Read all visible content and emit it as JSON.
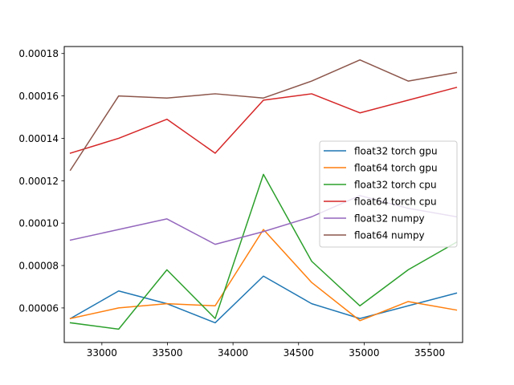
{
  "chart_data": {
    "type": "line",
    "x": [
      32760,
      33128,
      33496,
      33864,
      34232,
      34600,
      34968,
      35336,
      35704
    ],
    "series": [
      {
        "name": "float32 torch gpu",
        "color": "#1f77b4",
        "values": [
          5.5e-05,
          6.8e-05,
          6.2e-05,
          5.3e-05,
          7.5e-05,
          6.2e-05,
          5.5e-05,
          6.1e-05,
          6.7e-05
        ]
      },
      {
        "name": "float64 torch gpu",
        "color": "#ff7f0e",
        "values": [
          5.5e-05,
          6e-05,
          6.2e-05,
          6.1e-05,
          9.7e-05,
          7.2e-05,
          5.4e-05,
          6.3e-05,
          5.9e-05
        ]
      },
      {
        "name": "float32 torch cpu",
        "color": "#2ca02c",
        "values": [
          5.3e-05,
          5e-05,
          7.8e-05,
          5.5e-05,
          0.000123,
          8.2e-05,
          6.1e-05,
          7.8e-05,
          9.1e-05
        ]
      },
      {
        "name": "float64 torch cpu",
        "color": "#d62728",
        "values": [
          0.000133,
          0.00014,
          0.000149,
          0.000133,
          0.000158,
          0.000161,
          0.000152,
          0.000158,
          0.000164
        ]
      },
      {
        "name": "float32 numpy",
        "color": "#9467bd",
        "values": [
          9.2e-05,
          9.7e-05,
          0.000102,
          9e-05,
          9.6e-05,
          0.000103,
          0.000113,
          0.000107,
          0.000103
        ]
      },
      {
        "name": "float64 numpy",
        "color": "#8c564b",
        "values": [
          0.000125,
          0.00016,
          0.000159,
          0.000161,
          0.000159,
          0.000167,
          0.000177,
          0.000167,
          0.000171
        ]
      }
    ],
    "xticks": [
      33000,
      33500,
      34000,
      34500,
      35000,
      35500
    ],
    "xtick_labels": [
      "33000",
      "33500",
      "34000",
      "34500",
      "35000",
      "35500"
    ],
    "yticks": [
      6e-05,
      8e-05,
      0.0001,
      0.00012,
      0.00014,
      0.00016,
      0.00018
    ],
    "ytick_labels": [
      "0.00006",
      "0.00008",
      "0.00010",
      "0.00012",
      "0.00014",
      "0.00016",
      "0.00018"
    ],
    "xlim": [
      32713,
      35751
    ],
    "ylim": [
      4.37e-05,
      0.0001833
    ],
    "grid": false,
    "legend_position": "center-right",
    "title": "",
    "xlabel": "",
    "ylabel": ""
  }
}
